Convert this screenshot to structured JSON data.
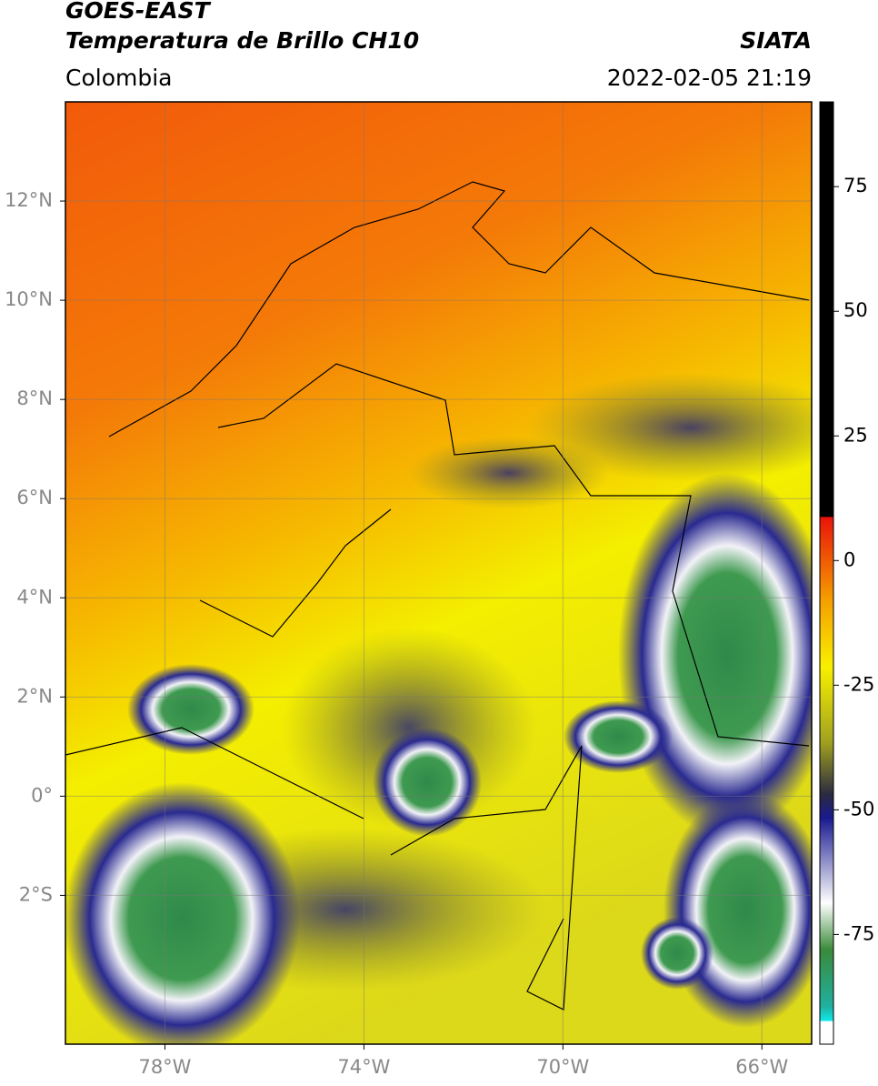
{
  "header": {
    "satellite": "GOES-EAST",
    "product": "Temperatura de Brillo CH10",
    "agency": "SIATA",
    "region": "Colombia",
    "datetime": "2022-02-05 21:19"
  },
  "map": {
    "lonlim": [
      -80,
      -65
    ],
    "latlim": [
      -5,
      14
    ],
    "lonticks": [
      {
        "value": -78,
        "label": "78°W"
      },
      {
        "value": -74,
        "label": "74°W"
      },
      {
        "value": -70,
        "label": "70°W"
      },
      {
        "value": -66,
        "label": "66°W"
      }
    ],
    "latticks": [
      {
        "value": 12,
        "label": "12°N"
      },
      {
        "value": 10,
        "label": "10°N"
      },
      {
        "value": 8,
        "label": "8°N"
      },
      {
        "value": 6,
        "label": "6°N"
      },
      {
        "value": 4,
        "label": "4°N"
      },
      {
        "value": 2,
        "label": "2°N"
      },
      {
        "value": 0,
        "label": "0°"
      },
      {
        "value": -2,
        "label": "2°S"
      }
    ],
    "grid": true
  },
  "colorbar": {
    "lim": [
      -97,
      92
    ],
    "ticks": [
      75,
      50,
      25,
      0,
      -25,
      -50,
      -75
    ]
  }
}
